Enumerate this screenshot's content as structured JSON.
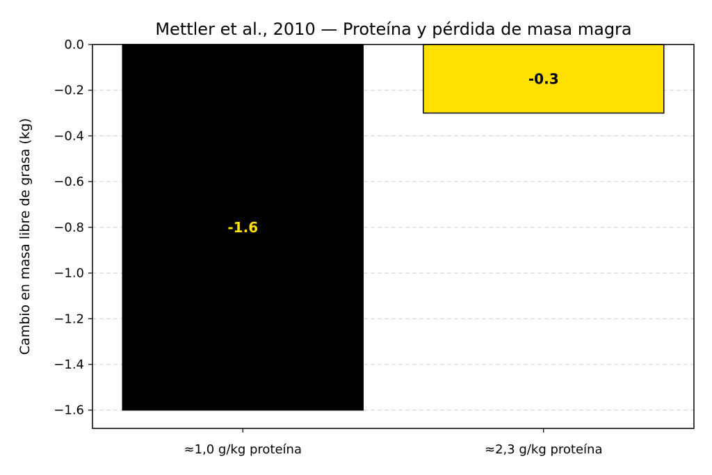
{
  "chart_data": {
    "type": "bar",
    "title": "Mettler et al., 2010 — Proteína y pérdida de masa magra",
    "xlabel": "",
    "ylabel": "Cambio en masa libre de grasa (kg)",
    "categories": [
      "≈1,0 g/kg proteína",
      "≈2,3 g/kg proteína"
    ],
    "values": [
      -1.6,
      -0.3
    ],
    "data_labels": [
      "-1.6",
      "-0.3"
    ],
    "bar_colors": [
      "#000000",
      "#FFE000"
    ],
    "label_colors": [
      "#FFE000",
      "#000000"
    ],
    "ylim": [
      -1.68,
      0.0
    ],
    "yticks": [
      0.0,
      -0.2,
      -0.4,
      -0.6,
      -0.8,
      -1.0,
      -1.2,
      -1.4,
      -1.6
    ],
    "ytick_labels": [
      "0.0",
      "−0.2",
      "−0.4",
      "−0.6",
      "−0.8",
      "−1.0",
      "−1.2",
      "−1.4",
      "−1.6"
    ],
    "grid": "y-dashed",
    "legend": "none"
  }
}
